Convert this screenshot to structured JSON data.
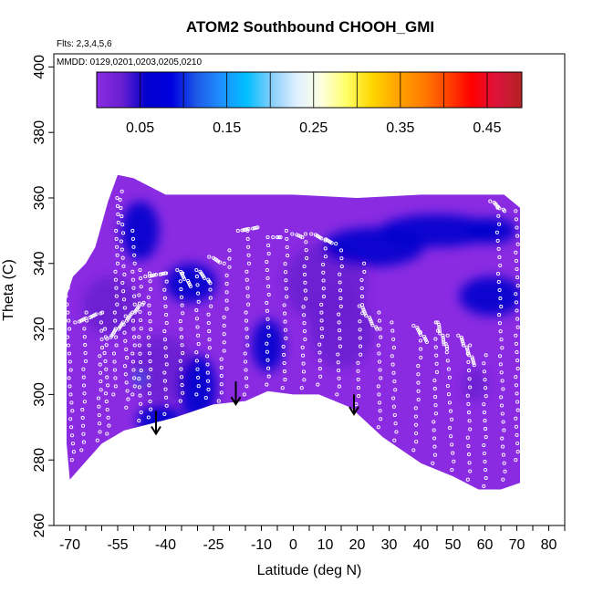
{
  "chart_data": {
    "type": "heatmap",
    "title": "ATOM2 Southbound CHOOH_GMI",
    "flights_label": "Flts: 2,3,4,5,6",
    "dates_label": "MMDD: 0129,0201,0203,0205,0210",
    "xlabel": "Latitude (deg N)",
    "ylabel": "Theta (C)",
    "xlim": [
      -75,
      85
    ],
    "ylim": [
      260,
      404
    ],
    "x_ticks": [
      -70,
      -55,
      -40,
      -25,
      -10,
      0,
      10,
      20,
      30,
      40,
      50,
      60,
      70,
      80
    ],
    "x_tick_labels": [
      "-70",
      "-55",
      "-40",
      "-25",
      "-10",
      "0",
      "10",
      "20",
      "30",
      "40",
      "50",
      "60",
      "70",
      "80"
    ],
    "x_minor_ticks": [
      -65,
      -60,
      -50,
      -45,
      -35,
      -30,
      -20,
      -15,
      -5,
      5,
      15,
      25,
      35,
      45,
      55,
      65,
      75,
      85
    ],
    "y_ticks": [
      260,
      280,
      300,
      320,
      340,
      360,
      380,
      400
    ],
    "y_tick_labels": [
      "260",
      "280",
      "300",
      "320",
      "340",
      "360",
      "380",
      "400"
    ],
    "colorbar": {
      "range": [
        0,
        0.49
      ],
      "colors": [
        "#8a2be2",
        "#6a1fd0",
        "#0000cd",
        "#0000e0",
        "#1e5ae8",
        "#1e90ff",
        "#00bfff",
        "#87cefa",
        "#e0f0ff",
        "#ffffe0",
        "#ffff66",
        "#ffd700",
        "#ffa500",
        "#ff7f00",
        "#ff4500",
        "#ff0000",
        "#dc143c",
        "#b22222"
      ],
      "boundaries": [
        0.05,
        0.1,
        0.15,
        0.2,
        0.25,
        0.3,
        0.35,
        0.4,
        0.45
      ],
      "tick_values": [
        0.05,
        0.15,
        0.25,
        0.35,
        0.45
      ],
      "tick_labels": [
        "0.05",
        "0.15",
        "0.25",
        "0.35",
        "0.45"
      ]
    },
    "field_background_value": 0.02,
    "data_outline": [
      [
        -70,
        274
      ],
      [
        -60,
        285
      ],
      [
        -53,
        289
      ],
      [
        -45,
        291
      ],
      [
        -37,
        293
      ],
      [
        -25,
        297
      ],
      [
        -15,
        298
      ],
      [
        -8,
        301
      ],
      [
        0,
        300
      ],
      [
        8,
        300
      ],
      [
        18,
        296
      ],
      [
        28,
        287
      ],
      [
        40,
        279
      ],
      [
        50,
        275
      ],
      [
        58,
        271
      ],
      [
        65,
        271
      ],
      [
        71,
        273
      ],
      [
        71,
        357
      ],
      [
        66,
        361
      ],
      [
        40,
        361
      ],
      [
        20,
        360
      ],
      [
        0,
        361
      ],
      [
        -20,
        361
      ],
      [
        -40,
        361
      ],
      [
        -50,
        366
      ],
      [
        -55,
        367
      ],
      [
        -58,
        359
      ],
      [
        -62,
        345
      ],
      [
        -65,
        340
      ],
      [
        -69,
        336
      ],
      [
        -71,
        330
      ],
      [
        -71,
        285
      ]
    ],
    "low_regions": [
      {
        "lat": -57,
        "theta": 327,
        "value": 0.05,
        "lat_r": 9,
        "theta_r": 9
      },
      {
        "lat": -48,
        "theta": 350,
        "value": 0.055,
        "lat_r": 6,
        "theta_r": 9
      },
      {
        "lat": -41,
        "theta": 308,
        "value": 0.05,
        "lat_r": 10,
        "theta_r": 10
      },
      {
        "lat": -42,
        "theta": 292,
        "value": 0.06,
        "lat_r": 7,
        "theta_r": 5
      },
      {
        "lat": -32,
        "theta": 334,
        "value": 0.06,
        "lat_r": 8,
        "theta_r": 6
      },
      {
        "lat": -30,
        "theta": 302,
        "value": 0.055,
        "lat_r": 6,
        "theta_r": 10
      },
      {
        "lat": 10,
        "theta": 334,
        "value": 0.05,
        "lat_r": 13,
        "theta_r": 12
      },
      {
        "lat": 15,
        "theta": 320,
        "value": 0.05,
        "lat_r": 10,
        "theta_r": 12
      },
      {
        "lat": 25,
        "theta": 345,
        "value": 0.055,
        "lat_r": 16,
        "theta_r": 6
      },
      {
        "lat": 45,
        "theta": 350,
        "value": 0.06,
        "lat_r": 18,
        "theta_r": 5
      },
      {
        "lat": 62,
        "theta": 350,
        "value": 0.065,
        "lat_r": 8,
        "theta_r": 4
      },
      {
        "lat": 62,
        "theta": 330,
        "value": 0.07,
        "lat_r": 10,
        "theta_r": 6
      },
      {
        "lat": 57,
        "theta": 303,
        "value": 0.05,
        "lat_r": 4,
        "theta_r": 5
      },
      {
        "lat": -8,
        "theta": 315,
        "value": 0.06,
        "lat_r": 5,
        "theta_r": 8
      },
      {
        "lat": -48,
        "theta": 305,
        "value": 0.13,
        "lat_r": 2,
        "theta_r": 2
      }
    ],
    "arrows": [
      {
        "lat": -43,
        "theta_top": 295,
        "theta_tip": 288
      },
      {
        "lat": -18,
        "theta_top": 304,
        "theta_tip": 297
      },
      {
        "lat": 19,
        "theta_top": 300,
        "theta_tip": 294
      }
    ],
    "flight_tracks": [
      {
        "lat0": -69,
        "theta0": 280,
        "lat1": -71,
        "theta1": 335
      },
      {
        "lat0": -66,
        "theta0": 283,
        "lat1": -65,
        "theta1": 325
      },
      {
        "lat0": -61,
        "theta0": 286,
        "lat1": -60,
        "theta1": 322
      },
      {
        "lat0": -58,
        "theta0": 288,
        "lat1": -59,
        "theta1": 320
      },
      {
        "lat0": -56,
        "theta0": 300,
        "lat1": -55,
        "theta1": 360
      },
      {
        "lat0": -52,
        "theta0": 296,
        "lat1": -54,
        "theta1": 362
      },
      {
        "lat0": -50,
        "theta0": 300,
        "lat1": -50,
        "theta1": 350
      },
      {
        "lat0": -48,
        "theta0": 292,
        "lat1": -48,
        "theta1": 338
      },
      {
        "lat0": -45,
        "theta0": 293,
        "lat1": -45,
        "theta1": 337
      },
      {
        "lat0": -40,
        "theta0": 294,
        "lat1": -40,
        "theta1": 337
      },
      {
        "lat0": -35,
        "theta0": 298,
        "lat1": -35,
        "theta1": 337
      },
      {
        "lat0": -30,
        "theta0": 300,
        "lat1": -30,
        "theta1": 336
      },
      {
        "lat0": -27,
        "theta0": 299,
        "lat1": -26,
        "theta1": 332
      },
      {
        "lat0": -23,
        "theta0": 298,
        "lat1": -20,
        "theta1": 344
      },
      {
        "lat0": -15,
        "theta0": 300,
        "lat1": -14,
        "theta1": 350
      },
      {
        "lat0": -8,
        "theta0": 303,
        "lat1": -8,
        "theta1": 348
      },
      {
        "lat0": -3,
        "theta0": 302,
        "lat1": -2,
        "theta1": 350
      },
      {
        "lat0": 3,
        "theta0": 302,
        "lat1": 4,
        "theta1": 349
      },
      {
        "lat0": 8,
        "theta0": 303,
        "lat1": 10,
        "theta1": 347
      },
      {
        "lat0": 14,
        "theta0": 300,
        "lat1": 15,
        "theta1": 344
      },
      {
        "lat0": 20,
        "theta0": 297,
        "lat1": 22,
        "theta1": 340
      },
      {
        "lat0": 27,
        "theta0": 290,
        "lat1": 27,
        "theta1": 325
      },
      {
        "lat0": 32,
        "theta0": 286,
        "lat1": 31,
        "theta1": 322
      },
      {
        "lat0": 38,
        "theta0": 283,
        "lat1": 40,
        "theta1": 319
      },
      {
        "lat0": 44,
        "theta0": 279,
        "lat1": 45,
        "theta1": 322
      },
      {
        "lat0": 50,
        "theta0": 277,
        "lat1": 48,
        "theta1": 318
      },
      {
        "lat0": 55,
        "theta0": 274,
        "lat1": 55,
        "theta1": 315
      },
      {
        "lat0": 60,
        "theta0": 272,
        "lat1": 60,
        "theta1": 312
      },
      {
        "lat0": 66,
        "theta0": 274,
        "lat1": 64,
        "theta1": 357
      },
      {
        "lat0": 70,
        "theta0": 280,
        "lat1": 70,
        "theta1": 356
      }
    ],
    "flight_legs": [
      {
        "lat0": -68,
        "theta0": 322,
        "lat1": -60,
        "theta1": 325
      },
      {
        "lat0": -58,
        "theta0": 317,
        "lat1": -47,
        "theta1": 328
      },
      {
        "lat0": -46,
        "theta0": 336,
        "lat1": -40,
        "theta1": 337
      },
      {
        "lat0": -36,
        "theta0": 338,
        "lat1": -32,
        "theta1": 333
      },
      {
        "lat0": -30,
        "theta0": 338,
        "lat1": -26,
        "theta1": 334
      },
      {
        "lat0": -26,
        "theta0": 342,
        "lat1": -22,
        "theta1": 340
      },
      {
        "lat0": -17,
        "theta0": 350,
        "lat1": -11,
        "theta1": 351
      },
      {
        "lat0": -6,
        "theta0": 348,
        "lat1": -4,
        "theta1": 348
      },
      {
        "lat0": 0,
        "theta0": 349,
        "lat1": 3,
        "theta1": 348
      },
      {
        "lat0": 6,
        "theta0": 349,
        "lat1": 13,
        "theta1": 346
      },
      {
        "lat0": 21,
        "theta0": 327,
        "lat1": 26,
        "theta1": 320
      },
      {
        "lat0": 38,
        "theta0": 321,
        "lat1": 42,
        "theta1": 316
      },
      {
        "lat0": 45,
        "theta0": 322,
        "lat1": 48,
        "theta1": 314
      },
      {
        "lat0": 52,
        "theta0": 318,
        "lat1": 57,
        "theta1": 309
      },
      {
        "lat0": 62,
        "theta0": 359,
        "lat1": 66,
        "theta1": 356
      }
    ]
  }
}
